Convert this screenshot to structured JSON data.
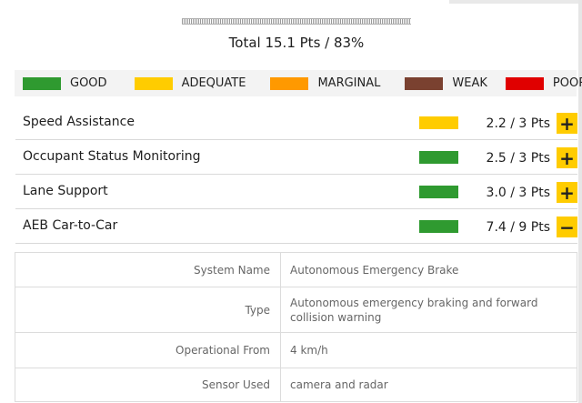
{
  "total": "Total 15.1 Pts / 83%",
  "legend": [
    {
      "label": "GOOD",
      "color": "#2f9a30"
    },
    {
      "label": "ADEQUATE",
      "color": "#ffcc00"
    },
    {
      "label": "MARGINAL",
      "color": "#ff9900"
    },
    {
      "label": "WEAK",
      "color": "#7a4130"
    },
    {
      "label": "POOR",
      "color": "#e00000"
    }
  ],
  "categories": [
    {
      "label": "Speed Assistance",
      "rating_color": "#ffcc00",
      "score": "2.2 / 3 Pts",
      "toggle": "+"
    },
    {
      "label": "Occupant Status Monitoring",
      "rating_color": "#2f9a30",
      "score": "2.5 / 3 Pts",
      "toggle": "+"
    },
    {
      "label": "Lane Support",
      "rating_color": "#2f9a30",
      "score": "3.0 / 3 Pts",
      "toggle": "+"
    },
    {
      "label": "AEB Car-to-Car",
      "rating_color": "#2f9a30",
      "score": "7.4 / 9 Pts",
      "toggle": "−"
    }
  ],
  "details": [
    {
      "label": "System Name",
      "value": "Autonomous Emergency Brake"
    },
    {
      "label": "Type",
      "value": "Autonomous emergency braking and forward collision warning"
    },
    {
      "label": "Operational From",
      "value": "4 km/h"
    },
    {
      "label": "Sensor Used",
      "value": "camera and radar"
    }
  ]
}
